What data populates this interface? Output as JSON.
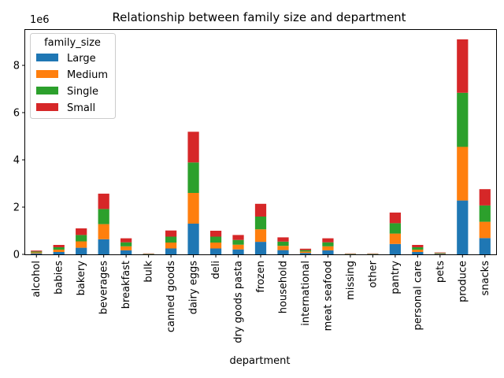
{
  "chart_data": {
    "type": "bar",
    "stacked": true,
    "title": "Relationship between family size and department",
    "xlabel": "department",
    "ylabel": "",
    "y_scale_label": "1e6",
    "ylim": [
      0,
      9.5
    ],
    "yticks": [
      0,
      2,
      4,
      6,
      8
    ],
    "grid": false,
    "legend": {
      "title": "family_size",
      "placement": "top-left"
    },
    "categories": [
      "alcohol",
      "babies",
      "bakery",
      "beverages",
      "breakfast",
      "bulk",
      "canned goods",
      "dairy eggs",
      "deli",
      "dry goods pasta",
      "frozen",
      "household",
      "international",
      "meat seafood",
      "missing",
      "other",
      "pantry",
      "personal care",
      "pets",
      "produce",
      "snacks"
    ],
    "series": [
      {
        "name": "Large",
        "color": "#1f77b4",
        "values": [
          0.04,
          0.1,
          0.28,
          0.64,
          0.17,
          0.01,
          0.25,
          1.3,
          0.25,
          0.21,
          0.53,
          0.18,
          0.06,
          0.17,
          0.01,
          0.01,
          0.44,
          0.1,
          0.02,
          2.28,
          0.69
        ]
      },
      {
        "name": "Medium",
        "color": "#ff7f0e",
        "values": [
          0.04,
          0.1,
          0.27,
          0.64,
          0.17,
          0.01,
          0.25,
          1.3,
          0.25,
          0.2,
          0.53,
          0.18,
          0.06,
          0.17,
          0.01,
          0.01,
          0.44,
          0.1,
          0.02,
          2.27,
          0.69
        ]
      },
      {
        "name": "Single",
        "color": "#2ca02c",
        "values": [
          0.04,
          0.1,
          0.27,
          0.64,
          0.17,
          0.01,
          0.25,
          1.29,
          0.25,
          0.2,
          0.54,
          0.18,
          0.06,
          0.17,
          0.01,
          0.01,
          0.44,
          0.1,
          0.02,
          2.29,
          0.69
        ]
      },
      {
        "name": "Small",
        "color": "#d62728",
        "values": [
          0.04,
          0.1,
          0.28,
          0.65,
          0.17,
          0.01,
          0.26,
          1.3,
          0.25,
          0.21,
          0.54,
          0.18,
          0.06,
          0.17,
          0.01,
          0.01,
          0.45,
          0.1,
          0.02,
          2.26,
          0.69
        ]
      }
    ]
  }
}
